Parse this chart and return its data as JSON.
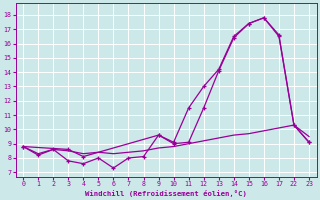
{
  "xlabel": "Windchill (Refroidissement éolien,°C)",
  "bg_color": "#cce8e8",
  "line_color": "#990099",
  "grid_color": "#ffffff",
  "xtick_labels": [
    "0",
    "1",
    "2",
    "3",
    "4",
    "5",
    "6",
    "7",
    "8",
    "9",
    "10",
    "11",
    "12",
    "13",
    "14",
    "15",
    "16",
    "17",
    "22",
    "23"
  ],
  "ytick_labels": [
    "7",
    "8",
    "9",
    "10",
    "11",
    "12",
    "13",
    "14",
    "15",
    "16",
    "17",
    "18"
  ],
  "ytick_vals": [
    7,
    8,
    9,
    10,
    11,
    12,
    13,
    14,
    15,
    16,
    17,
    18
  ],
  "ylim": [
    6.7,
    18.8
  ],
  "line1_xi": [
    0,
    1,
    2,
    3,
    4,
    5,
    6,
    7,
    8,
    9,
    10,
    11,
    12,
    13,
    14,
    15,
    16,
    17,
    18,
    19
  ],
  "line1_y": [
    8.8,
    8.2,
    8.6,
    7.8,
    7.6,
    8.0,
    7.3,
    8.0,
    8.1,
    9.6,
    9.0,
    9.1,
    11.5,
    14.1,
    16.4,
    17.4,
    17.8,
    16.5,
    10.3,
    9.1
  ],
  "line2_xi": [
    0,
    1,
    2,
    3,
    4,
    5,
    6,
    7,
    8,
    9,
    10,
    11,
    12,
    13,
    14,
    15,
    16,
    17,
    18,
    19
  ],
  "line2_y": [
    8.8,
    8.3,
    8.6,
    8.5,
    8.3,
    8.4,
    8.3,
    8.4,
    8.5,
    8.7,
    8.8,
    9.0,
    9.2,
    9.4,
    9.6,
    9.7,
    9.9,
    10.1,
    10.3,
    9.5
  ],
  "line3_xi": [
    0,
    3,
    4,
    9,
    10,
    11,
    12,
    13,
    14,
    15,
    16,
    17,
    18,
    19
  ],
  "line3_y": [
    8.8,
    8.6,
    8.1,
    9.6,
    9.1,
    11.5,
    13.0,
    14.2,
    16.5,
    17.4,
    17.8,
    16.6,
    10.3,
    9.1
  ]
}
